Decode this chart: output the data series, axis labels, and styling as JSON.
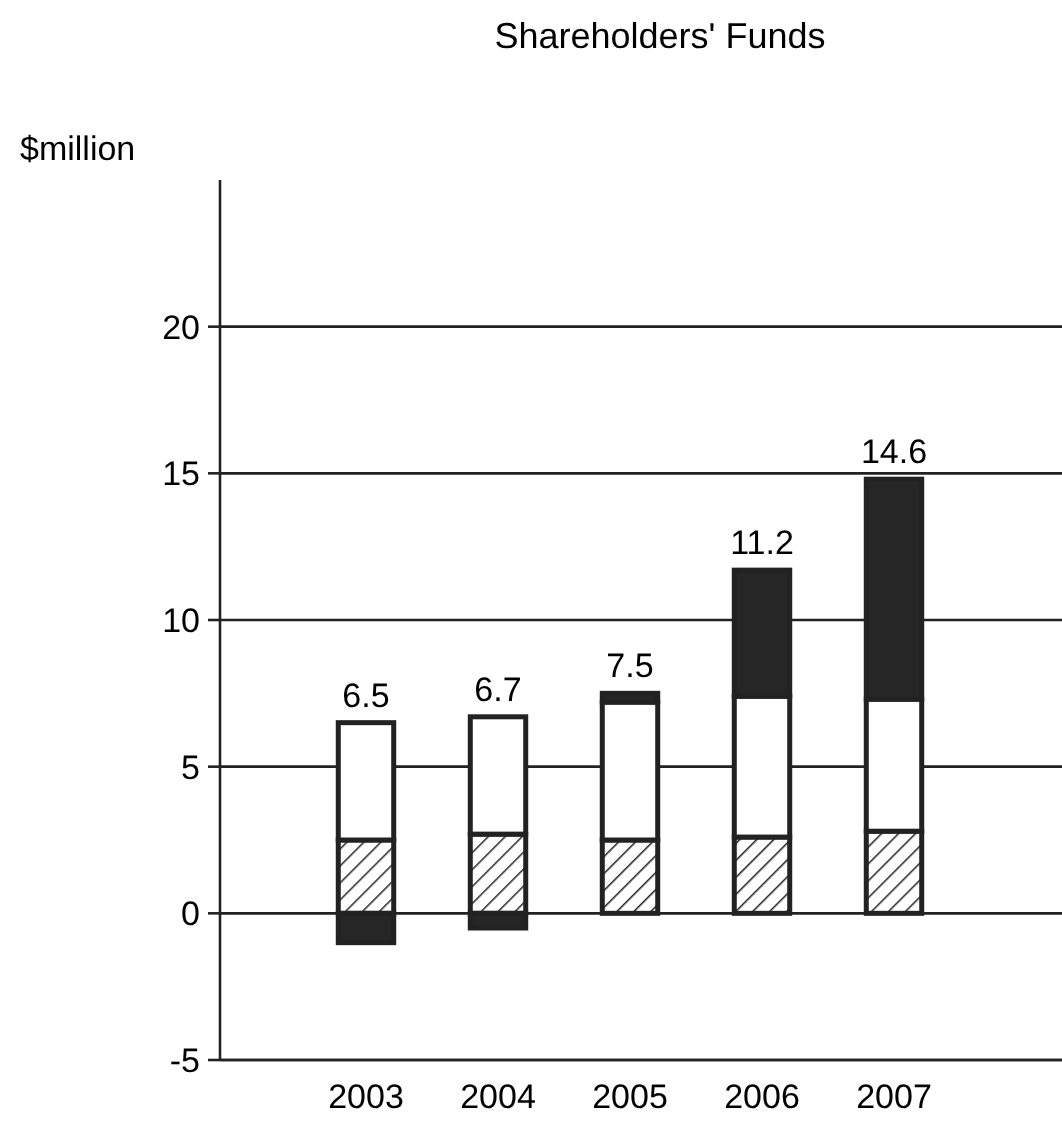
{
  "chart_data": {
    "type": "bar",
    "title": "Shareholders' Funds",
    "ylabel": "$million",
    "stacked": true,
    "categories": [
      "2003",
      "2004",
      "2005",
      "2006",
      "2007"
    ],
    "series": [
      {
        "color": "#222222",
        "values": [
          2.5,
          2.7,
          2.5,
          2.6,
          2.8
        ]
      },
      {
        "color": "#ffffff",
        "values": [
          4.0,
          4.0,
          4.7,
          4.8,
          4.5
        ]
      },
      {
        "color": "#262626",
        "values": [
          -1.0,
          -0.5,
          0.3,
          4.3,
          7.5
        ]
      }
    ],
    "annotations": [
      {
        "text": "6.5",
        "x": "2003",
        "y": 6.5
      },
      {
        "text": "6.7",
        "x": "2004",
        "y": 6.7
      },
      {
        "text": "7.5",
        "x": "2005",
        "y": 7.5
      },
      {
        "text": "11.2",
        "x": "2006",
        "y": 11.7
      },
      {
        "text": "14.6",
        "x": "2007",
        "y": 14.8
      }
    ],
    "ylim": [
      -5,
      25
    ],
    "yticks": [
      -5,
      0,
      5,
      10,
      15,
      20
    ],
    "grid": "y"
  }
}
